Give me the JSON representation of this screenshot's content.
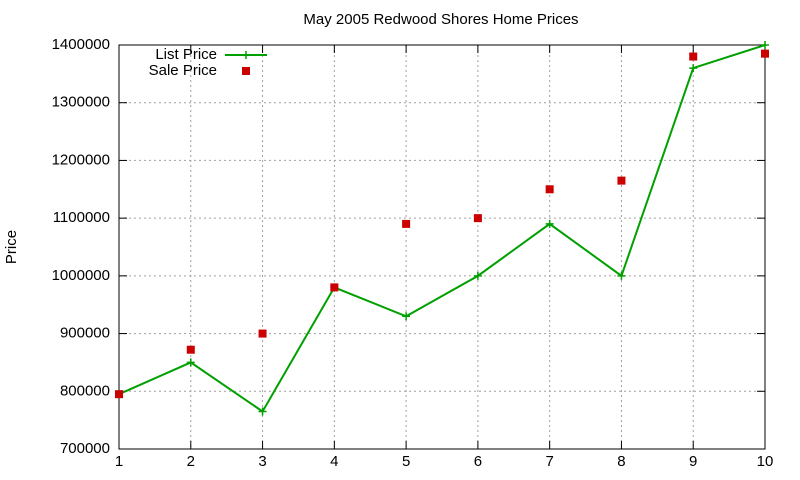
{
  "chart_data": {
    "type": "line",
    "title": "May 2005 Redwood Shores Home Prices",
    "y_label": "Price",
    "x": [
      1,
      2,
      3,
      4,
      5,
      6,
      7,
      8,
      9,
      10
    ],
    "series": [
      {
        "name": "List Price",
        "color": "#00a000",
        "mode": "lines+markers",
        "values": [
          795000,
          850000,
          765000,
          980000,
          930000,
          1000000,
          1090000,
          1000000,
          1360000,
          1400000
        ]
      },
      {
        "name": "Sale Price",
        "color": "#cc0000",
        "mode": "markers",
        "values": [
          795000,
          872000,
          900000,
          980000,
          1090000,
          1100000,
          1150000,
          1165000,
          1380000,
          1385000
        ]
      }
    ],
    "xlim": [
      1,
      10
    ],
    "xticks": [
      1,
      2,
      3,
      4,
      5,
      6,
      7,
      8,
      9,
      10
    ],
    "ylim": [
      700000,
      1400000
    ],
    "yticks": [
      700000,
      800000,
      900000,
      1000000,
      1100000,
      1200000,
      1300000,
      1400000
    ],
    "grid": true,
    "legend": "top-left"
  }
}
